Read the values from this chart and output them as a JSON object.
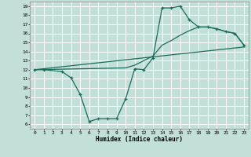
{
  "title": "",
  "xlabel": "Humidex (Indice chaleur)",
  "bg_color": "#c2e0d8",
  "grid_color": "#ffffff",
  "line_color": "#1a6b5a",
  "xlim": [
    -0.5,
    23.5
  ],
  "ylim": [
    5.5,
    19.5
  ],
  "xticks": [
    0,
    1,
    2,
    3,
    4,
    5,
    6,
    7,
    8,
    9,
    10,
    11,
    12,
    13,
    14,
    15,
    16,
    17,
    18,
    19,
    20,
    21,
    22,
    23
  ],
  "yticks": [
    6,
    7,
    8,
    9,
    10,
    11,
    12,
    13,
    14,
    15,
    16,
    17,
    18,
    19
  ],
  "line1_x": [
    0,
    1,
    3,
    4,
    5,
    6,
    7,
    8,
    9,
    10,
    11,
    12,
    13,
    14,
    15,
    16,
    17,
    18,
    19,
    20,
    21,
    22,
    23
  ],
  "line1_y": [
    12,
    12,
    11.8,
    11.1,
    9.3,
    6.3,
    6.6,
    6.6,
    6.6,
    8.8,
    12.1,
    12.0,
    13.3,
    18.8,
    18.8,
    19.0,
    17.5,
    16.7,
    16.7,
    16.5,
    16.2,
    16.0,
    14.7
  ],
  "line2_x": [
    0,
    23
  ],
  "line2_y": [
    12.0,
    14.5
  ],
  "line3_x": [
    0,
    10,
    11,
    12,
    13,
    14,
    15,
    16,
    17,
    18,
    19,
    20,
    21,
    22,
    23
  ],
  "line3_y": [
    12.0,
    12.2,
    12.5,
    13.0,
    13.5,
    14.7,
    15.2,
    15.8,
    16.3,
    16.7,
    16.7,
    16.5,
    16.2,
    16.0,
    14.7
  ]
}
